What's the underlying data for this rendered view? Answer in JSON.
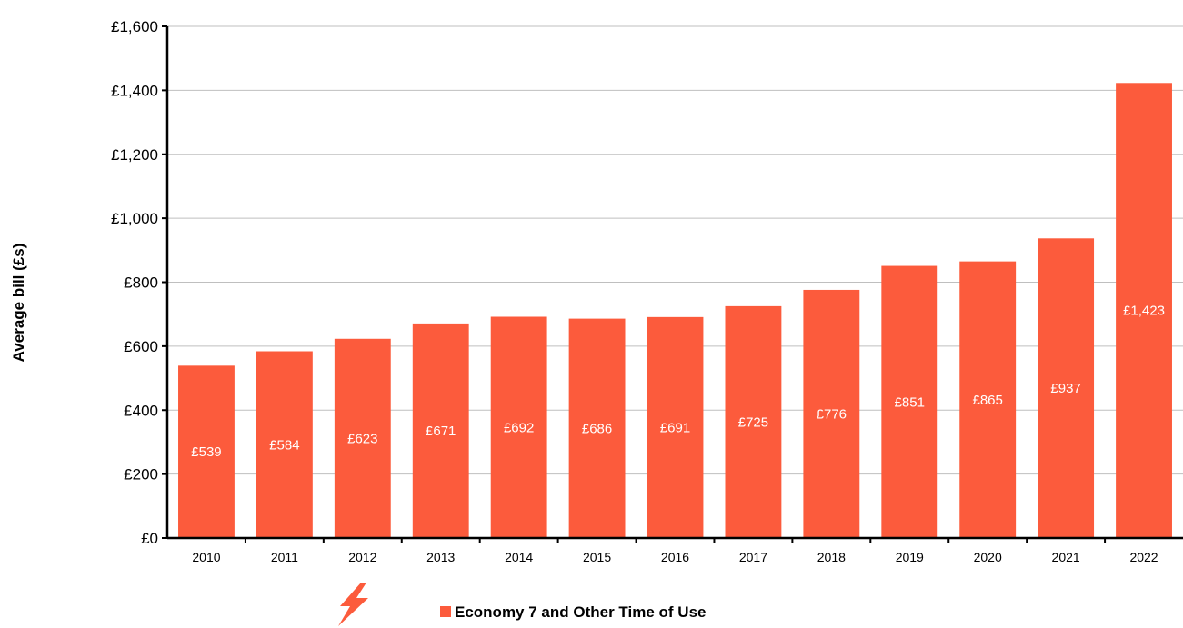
{
  "chart_data": {
    "type": "bar",
    "title": "",
    "xlabel": "",
    "ylabel": "Average bill (£s)",
    "categories": [
      "2010",
      "2011",
      "2012",
      "2013",
      "2014",
      "2015",
      "2016",
      "2017",
      "2018",
      "2019",
      "2020",
      "2021",
      "2022"
    ],
    "series": [
      {
        "name": "Economy 7 and Other Time of Use",
        "values": [
          539,
          584,
          623,
          671,
          692,
          686,
          691,
          725,
          776,
          851,
          865,
          937,
          1423
        ],
        "labels": [
          "£539",
          "£584",
          "£623",
          "£671",
          "£692",
          "£686",
          "£691",
          "£725",
          "£776",
          "£851",
          "£865",
          "£937",
          "£1,423"
        ]
      }
    ],
    "ylim": [
      0,
      1600
    ],
    "yticks": [
      0,
      200,
      400,
      600,
      800,
      1000,
      1200,
      1400,
      1600
    ],
    "ytick_labels": [
      "£0",
      "£200",
      "£400",
      "£600",
      "£800",
      "£1,000",
      "£1,200",
      "£1,400",
      "£1,600"
    ],
    "grid": true,
    "legend_position": "bottom"
  },
  "colors": {
    "bar": "#fc5b3c",
    "grid": "#bfbfbf",
    "axis": "#000000",
    "icon": "#fc5b3c"
  },
  "icons": {
    "legend_icon": "lightning-bolt-icon"
  }
}
